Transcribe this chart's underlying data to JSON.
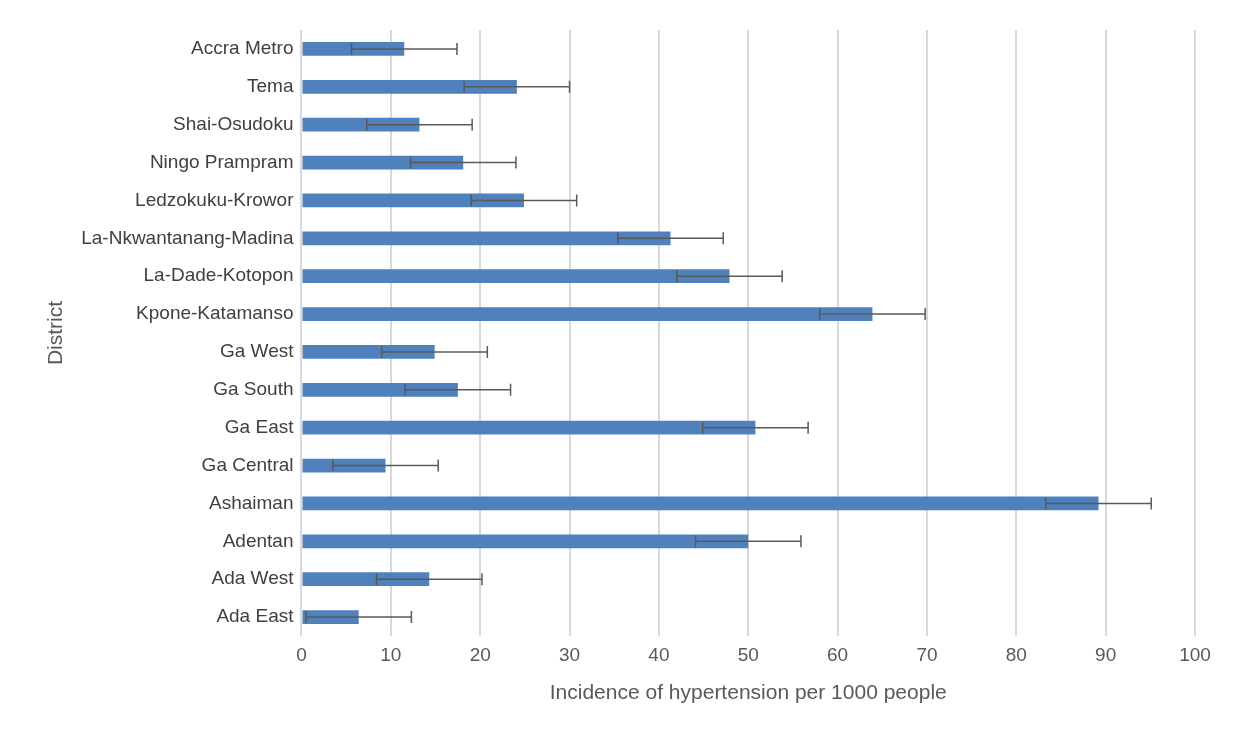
{
  "chart_data": {
    "type": "bar",
    "orientation": "horizontal",
    "xlabel": "Incidence of hypertension per 1000 people",
    "ylabel": "District",
    "categories": [
      "Accra Metro",
      "Tema",
      "Shai-Osudoku",
      "Ningo Prampram",
      "Ledzokuku-Krowor",
      "La-Nkwantanang-Madina",
      "La-Dade-Kotopon",
      "Kpone-Katamanso",
      "Ga West",
      "Ga South",
      "Ga East",
      "Ga Central",
      "Ashaiman",
      "Adentan",
      "Ada West",
      "Ada East"
    ],
    "values": [
      11.5,
      24.1,
      13.2,
      18.1,
      24.9,
      41.3,
      47.9,
      63.9,
      14.9,
      17.5,
      50.8,
      9.4,
      89.2,
      50.0,
      14.3,
      6.4
    ],
    "errors": [
      5.9,
      5.9,
      5.9,
      5.9,
      5.9,
      5.9,
      5.9,
      5.9,
      5.9,
      5.9,
      5.9,
      5.9,
      5.9,
      5.9,
      5.9,
      5.9
    ],
    "color": "#4f81bd",
    "xlim": [
      0,
      100
    ],
    "xticks": [
      0,
      10,
      20,
      30,
      40,
      50,
      60,
      70,
      80,
      90,
      100
    ],
    "grid": "x",
    "legend": false
  }
}
